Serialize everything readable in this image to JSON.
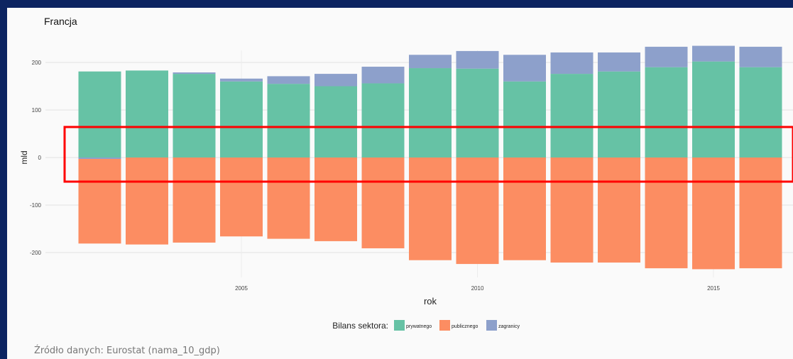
{
  "chart_data": {
    "type": "bar",
    "stacked": true,
    "title": "Francja",
    "xlabel": "rok",
    "ylabel": "mld",
    "x": [
      2002,
      2003,
      2004,
      2005,
      2006,
      2007,
      2008,
      2009,
      2010,
      2011,
      2012,
      2013,
      2014,
      2015,
      2016
    ],
    "x_ticks": [
      2005,
      2010,
      2015
    ],
    "y_ticks": [
      200,
      100,
      0,
      -100,
      -200
    ],
    "y_tick_labels": [
      "200",
      "100",
      "0",
      "-100",
      "-200"
    ],
    "ylim": [
      -245,
      245
    ],
    "grid": true,
    "legend": {
      "title": "Bilans sektora:",
      "position": "bottom"
    },
    "series": [
      {
        "name": "prywatnego",
        "color": "#66c2a5",
        "values": [
          181,
          183,
          176,
          160,
          155,
          150,
          156,
          188,
          187,
          160,
          176,
          181,
          190,
          202,
          190
        ]
      },
      {
        "name": "zagranicy",
        "color": "#8da0cb",
        "values": [
          -3,
          0,
          3,
          6,
          16,
          26,
          35,
          28,
          37,
          56,
          45,
          40,
          43,
          33,
          43
        ]
      },
      {
        "name": "publicznego",
        "color": "#fc8d62",
        "values": [
          -178,
          -183,
          -179,
          -166,
          -171,
          -176,
          -191,
          -216,
          -224,
          -216,
          -221,
          -221,
          -233,
          -235,
          -233
        ]
      }
    ]
  },
  "source_note": "Źródło danych: Eurostat (nama_10_gdp)",
  "highlight_box": {
    "color": "#ff0000"
  }
}
